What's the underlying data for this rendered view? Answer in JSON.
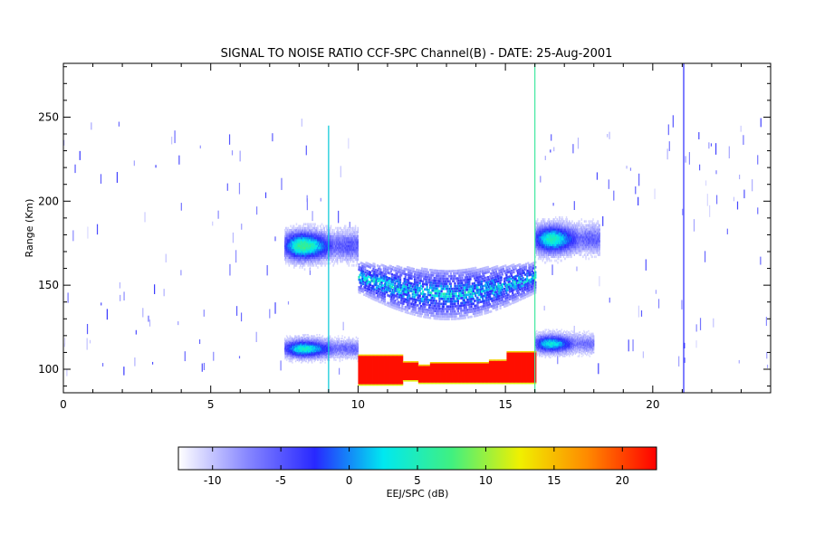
{
  "chart_data": {
    "type": "heatmap",
    "title": "SIGNAL TO NOISE RATIO CCF-SPC Channel(B) - DATE: 25-Aug-2001",
    "xlabel": "",
    "ylabel": "Range (Km)",
    "xlim": [
      0,
      24
    ],
    "ylim": [
      86,
      282
    ],
    "x_ticks": [
      0,
      5,
      10,
      15,
      20
    ],
    "y_ticks": [
      100,
      150,
      200,
      250
    ],
    "grid": false,
    "colorbar": {
      "label": "EEJ/SPC (dB)",
      "range": [
        -12.5,
        22.5
      ],
      "ticks": [
        -10,
        -5,
        0,
        5,
        10,
        15,
        20
      ],
      "colors": [
        "#ffffff",
        "#8888ff",
        "#2828ff",
        "#00e8f0",
        "#40f080",
        "#f0f000",
        "#ff8800",
        "#ff0000"
      ]
    },
    "regions": [
      {
        "name": "EEJ echo",
        "x": [
          10.0,
          16.0
        ],
        "y_range_km": [
          91,
          110
        ],
        "snr_db": 22
      },
      {
        "name": "150 km echoes",
        "x": [
          10.0,
          16.0
        ],
        "y_range_km": [
          130,
          168
        ],
        "snr_db_range": [
          -10,
          5
        ]
      },
      {
        "name": "morning 170 km layer",
        "x": [
          7.5,
          10.0
        ],
        "y_center_km": 173,
        "snr_db_peak": 8
      },
      {
        "name": "morning 112 km layer",
        "x": [
          7.5,
          10.0
        ],
        "y_center_km": 112,
        "snr_db_peak": 5
      },
      {
        "name": "afternoon 175 km layer",
        "x": [
          16.0,
          18.2
        ],
        "y_center_km": 177,
        "snr_db_peak": 6
      },
      {
        "name": "afternoon 115 km layer",
        "x": [
          16.0,
          18.0
        ],
        "y_center_km": 115,
        "snr_db_peak": 4
      }
    ],
    "vertical_lines": [
      {
        "x": 9.0,
        "y_range_km": [
          86,
          245
        ]
      },
      {
        "x": 16.0,
        "y_range_km": [
          86,
          282
        ]
      },
      {
        "x": 21.05,
        "y_range_km": [
          86,
          282
        ]
      }
    ]
  }
}
